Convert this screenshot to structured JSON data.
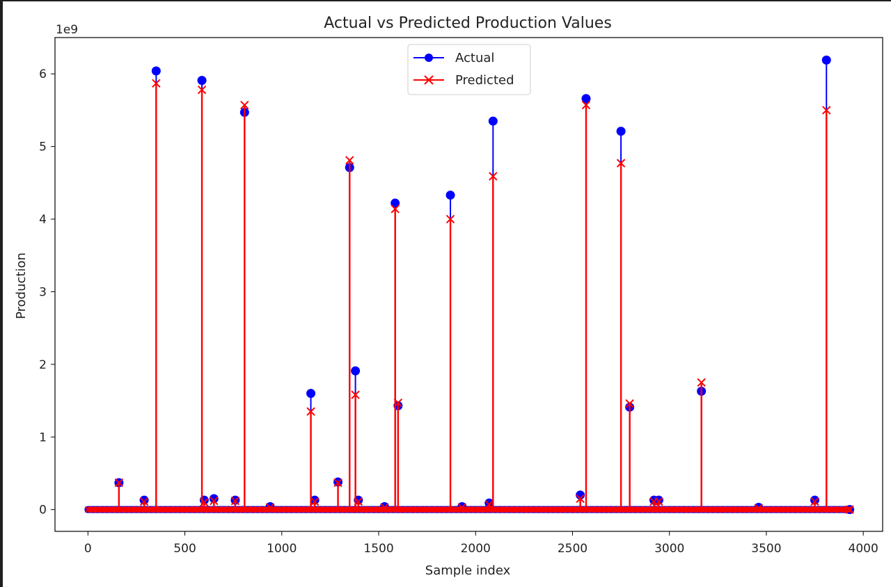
{
  "chart_data": {
    "type": "line",
    "title": "Actual vs Predicted Production Values",
    "xlabel": "Sample index",
    "ylabel": "Production",
    "y_offset_label": "1e9",
    "xlim": [
      -170,
      4100
    ],
    "ylim": [
      -0.3,
      6.5
    ],
    "x_ticks": [
      0,
      500,
      1000,
      1500,
      2000,
      2500,
      3000,
      3500,
      4000
    ],
    "y_ticks": [
      0,
      1,
      2,
      3,
      4,
      5,
      6
    ],
    "legend_position": "upper center",
    "baseline": {
      "x_start": 0,
      "x_end": 3940,
      "value": 0
    },
    "series": [
      {
        "name": "Actual",
        "color": "#0000ff",
        "marker": "circle",
        "points": [
          [
            160,
            0.37
          ],
          [
            290,
            0.13
          ],
          [
            352,
            6.04
          ],
          [
            588,
            5.91
          ],
          [
            600,
            0.13
          ],
          [
            650,
            0.15
          ],
          [
            760,
            0.13
          ],
          [
            808,
            5.47
          ],
          [
            940,
            0.04
          ],
          [
            1150,
            1.6
          ],
          [
            1170,
            0.13
          ],
          [
            1290,
            0.38
          ],
          [
            1350,
            4.71
          ],
          [
            1380,
            1.91
          ],
          [
            1395,
            0.13
          ],
          [
            1530,
            0.04
          ],
          [
            1585,
            4.22
          ],
          [
            1600,
            1.43
          ],
          [
            1870,
            4.33
          ],
          [
            1930,
            0.04
          ],
          [
            2070,
            0.09
          ],
          [
            2090,
            5.35
          ],
          [
            2540,
            0.2
          ],
          [
            2570,
            5.66
          ],
          [
            2750,
            5.21
          ],
          [
            2795,
            1.41
          ],
          [
            2920,
            0.13
          ],
          [
            2945,
            0.13
          ],
          [
            3165,
            1.63
          ],
          [
            3460,
            0.03
          ],
          [
            3750,
            0.13
          ],
          [
            3810,
            6.19
          ],
          [
            3930,
            0.0
          ]
        ]
      },
      {
        "name": "Predicted",
        "color": "#ff0000",
        "marker": "x",
        "points": [
          [
            160,
            0.37
          ],
          [
            290,
            0.11
          ],
          [
            352,
            5.87
          ],
          [
            588,
            5.78
          ],
          [
            600,
            0.1
          ],
          [
            650,
            0.12
          ],
          [
            760,
            0.12
          ],
          [
            808,
            5.57
          ],
          [
            940,
            0.03
          ],
          [
            1150,
            1.35
          ],
          [
            1170,
            0.11
          ],
          [
            1290,
            0.37
          ],
          [
            1350,
            4.81
          ],
          [
            1380,
            1.58
          ],
          [
            1395,
            0.11
          ],
          [
            1530,
            0.03
          ],
          [
            1585,
            4.14
          ],
          [
            1600,
            1.47
          ],
          [
            1870,
            4.0
          ],
          [
            1930,
            0.03
          ],
          [
            2070,
            0.07
          ],
          [
            2090,
            4.59
          ],
          [
            2540,
            0.15
          ],
          [
            2570,
            5.57
          ],
          [
            2750,
            4.77
          ],
          [
            2795,
            1.46
          ],
          [
            2920,
            0.11
          ],
          [
            2945,
            0.11
          ],
          [
            3165,
            1.75
          ],
          [
            3460,
            0.02
          ],
          [
            3750,
            0.11
          ],
          [
            3810,
            5.5
          ],
          [
            3930,
            0.0
          ]
        ]
      }
    ]
  }
}
